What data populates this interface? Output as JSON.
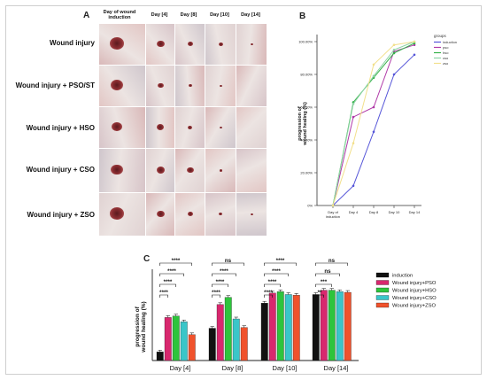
{
  "panel_a": {
    "letter": "A",
    "column_headers": [
      "Day of wound induction",
      "Day [4]",
      "Day [8]",
      "Day [10]",
      "Day [14]"
    ],
    "row_labels": [
      "Wound injury",
      "Wound injury + PSO/ST",
      "Wound injury + HSO",
      "Wound injury + CSO",
      "Wound injury + ZSO"
    ]
  },
  "panel_b": {
    "letter": "B"
  },
  "panel_c": {
    "letter": "C"
  },
  "chart_data": [
    {
      "type": "line",
      "ylabel": "progression of wound healing (%)",
      "categories": [
        "Day of induction",
        "Day 4",
        "Day 8",
        "Day 10",
        "Day 14"
      ],
      "y_ticks": [
        "0%",
        "20.00%",
        "40.00%",
        "60.00%",
        "80.00%",
        "100.00%"
      ],
      "ylim": [
        0,
        100
      ],
      "legend_title": "groups",
      "legend_position": "right",
      "series": [
        {
          "name": "induction",
          "color": "#5555d8",
          "values": [
            0,
            12,
            45,
            80,
            92
          ]
        },
        {
          "name": "pso",
          "color": "#b03aa8",
          "values": [
            0,
            54,
            60,
            94,
            98
          ]
        },
        {
          "name": "hso",
          "color": "#36b24a",
          "values": [
            0,
            63,
            78,
            93,
            99
          ]
        },
        {
          "name": "cso",
          "color": "#8fd4a6",
          "values": [
            0,
            62,
            79,
            95,
            100
          ]
        },
        {
          "name": "zso",
          "color": "#f2e08c",
          "values": [
            0,
            38,
            86,
            98,
            100
          ]
        }
      ]
    },
    {
      "type": "bar",
      "ylabel": "progression of wound healing (%)",
      "categories": [
        "Day [4]",
        "Day [8]",
        "Day [10]",
        "Day [14]"
      ],
      "legend_position": "right",
      "series": [
        {
          "name": "induction",
          "color": "#111111",
          "values": [
            12,
            45,
            80,
            92
          ]
        },
        {
          "name": "Wound injury+PSO",
          "color": "#d8286e",
          "values": [
            60,
            78,
            94,
            98
          ]
        },
        {
          "name": "Wound injury+HSO",
          "color": "#2ec43c",
          "values": [
            62,
            88,
            96,
            98
          ]
        },
        {
          "name": "Wound injury+CSO",
          "color": "#3ac6c9",
          "values": [
            54,
            58,
            92,
            96
          ]
        },
        {
          "name": "Wound injury+ZSO",
          "color": "#f0522c",
          "values": [
            36,
            46,
            91,
            95
          ]
        }
      ],
      "significance": [
        [
          "****",
          "****",
          "****",
          "****"
        ],
        [
          "ns",
          "****",
          "****",
          "****"
        ],
        [
          "****",
          "****",
          "****",
          "****"
        ],
        [
          "ns",
          "ns",
          "***",
          "**"
        ]
      ]
    }
  ]
}
